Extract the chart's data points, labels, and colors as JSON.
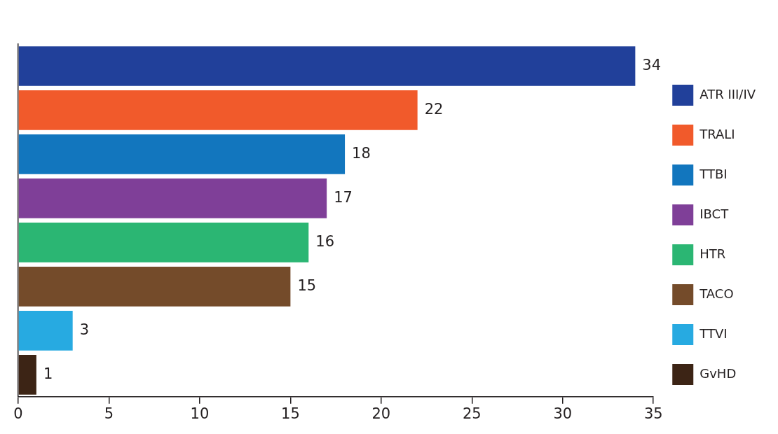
{
  "chart_data": {
    "type": "bar",
    "orientation": "horizontal",
    "categories": [
      null,
      null,
      null,
      null,
      null,
      null,
      null,
      null
    ],
    "series": [
      {
        "name": "ATR III/IV",
        "color": "#21409a",
        "values": [
          34,
          null,
          null,
          null,
          null,
          null,
          null,
          null
        ]
      },
      {
        "name": "TRALI",
        "color": "#f15a2b",
        "values": [
          null,
          22,
          null,
          null,
          null,
          null,
          null,
          null
        ]
      },
      {
        "name": "TTBI",
        "color": "#1276be",
        "values": [
          null,
          null,
          18,
          null,
          null,
          null,
          null,
          null
        ]
      },
      {
        "name": "IBCT",
        "color": "#7f3f98",
        "values": [
          null,
          null,
          null,
          17,
          null,
          null,
          null,
          null
        ]
      },
      {
        "name": "HTR",
        "color": "#2bb673",
        "values": [
          null,
          null,
          null,
          null,
          16,
          null,
          null,
          null
        ]
      },
      {
        "name": "TACO",
        "color": "#744b2a",
        "values": [
          null,
          null,
          null,
          null,
          null,
          15,
          null,
          null
        ]
      },
      {
        "name": "TTVI",
        "color": "#27aae1",
        "values": [
          null,
          null,
          null,
          null,
          null,
          null,
          3,
          null
        ]
      },
      {
        "name": "GvHD",
        "color": "#3c2415",
        "values": [
          null,
          null,
          null,
          null,
          null,
          null,
          null,
          1
        ]
      }
    ],
    "xlim": [
      0,
      35
    ],
    "xticks": [
      0,
      5,
      10,
      15,
      20,
      25,
      30,
      35
    ],
    "tick_labels": "x",
    "grid": false,
    "legend": "right",
    "data_labels": true
  }
}
